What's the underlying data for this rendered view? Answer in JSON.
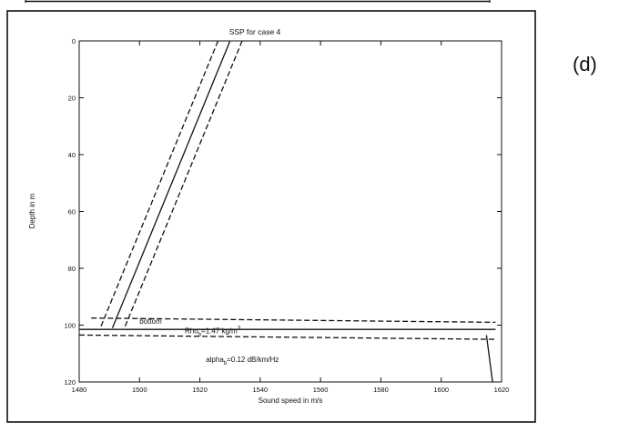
{
  "figure": {
    "panel_label": "(d)"
  },
  "chart_data": {
    "type": "line",
    "title": "SSP for case 4",
    "xlabel": "Sound speed in m/s",
    "ylabel": "Depth in m",
    "xlim": [
      1480,
      1620
    ],
    "ylim": [
      0,
      120
    ],
    "y_inverted": true,
    "grid": false,
    "xticks": [
      "1480",
      "1500",
      "1520",
      "1540",
      "1560",
      "1580",
      "1600",
      "1620"
    ],
    "yticks": [
      "0",
      "20",
      "40",
      "60",
      "80",
      "100",
      "120"
    ],
    "series": [
      {
        "style": "solid",
        "points": [
          [
            1530,
            0
          ],
          [
            1491,
            101
          ]
        ]
      },
      {
        "style": "dashed",
        "points": [
          [
            1526,
            0
          ],
          [
            1487,
            101
          ]
        ]
      },
      {
        "style": "dashed",
        "points": [
          [
            1534,
            0
          ],
          [
            1495,
            101
          ]
        ]
      },
      {
        "style": "dashed",
        "points": [
          [
            1484,
            97.5
          ],
          [
            1618,
            99
          ]
        ]
      },
      {
        "style": "solid",
        "points": [
          [
            1480,
            101.5
          ],
          [
            1618,
            101.5
          ]
        ]
      },
      {
        "style": "dashed",
        "points": [
          [
            1480,
            103.5
          ],
          [
            1618,
            105
          ]
        ]
      },
      {
        "style": "solid",
        "points": [
          [
            1615,
            103.5
          ],
          [
            1617,
            120
          ]
        ]
      }
    ],
    "annotations": [
      {
        "id": "bottom",
        "text": "bottom",
        "x": 1500,
        "y": 99.5
      },
      {
        "id": "rho",
        "text": "Rho",
        "sub": "b",
        "text2": "=1.47 kg/m",
        "sup": "3",
        "x": 1515,
        "y": 102.8
      },
      {
        "id": "alpha",
        "text": "alpha",
        "sub": "b",
        "text2": "=0.12 dB/km/Hz",
        "x": 1522,
        "y": 113
      }
    ]
  }
}
